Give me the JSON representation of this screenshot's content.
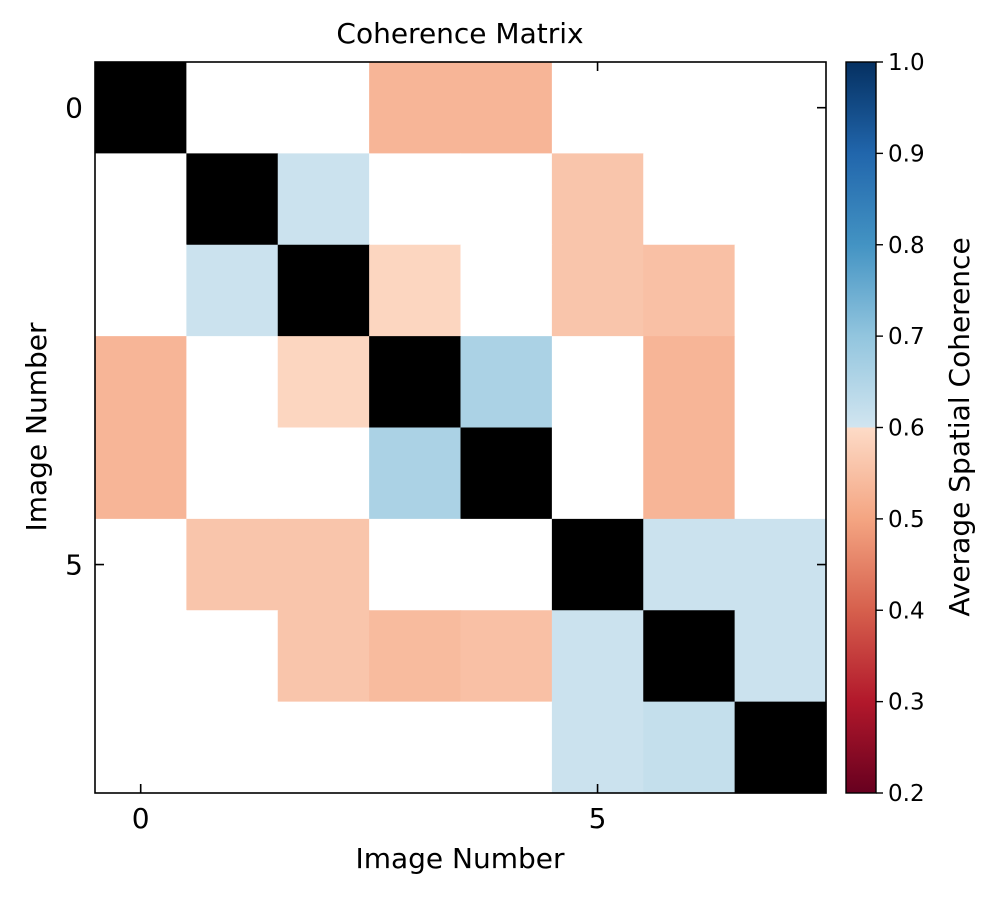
{
  "chart_data": {
    "type": "heatmap",
    "title": "Coherence Matrix",
    "xlabel": "Image Number",
    "ylabel": "Image Number",
    "x_ticks": [
      0,
      5
    ],
    "y_ticks": [
      0,
      5
    ],
    "x_tick_labels": [
      "0",
      "5"
    ],
    "y_tick_labels": [
      "0",
      "5"
    ],
    "size": 8,
    "diagonal_color": "#000000",
    "missing_color": "#ffffff",
    "matrix": [
      [
        null,
        null,
        null,
        0.53,
        0.53,
        null,
        null,
        null
      ],
      [
        null,
        null,
        0.61,
        null,
        null,
        0.56,
        null,
        null
      ],
      [
        null,
        0.61,
        null,
        0.59,
        null,
        0.56,
        0.55,
        null
      ],
      [
        0.53,
        null,
        0.59,
        null,
        0.66,
        null,
        0.53,
        null
      ],
      [
        0.53,
        null,
        null,
        0.66,
        null,
        null,
        0.53,
        null
      ],
      [
        null,
        0.56,
        0.56,
        null,
        null,
        null,
        0.61,
        0.61
      ],
      [
        null,
        null,
        0.56,
        0.54,
        0.55,
        0.61,
        null,
        0.61
      ],
      [
        null,
        null,
        null,
        null,
        null,
        0.61,
        0.62,
        null
      ]
    ],
    "colorbar": {
      "label": "Average Spatial Coherence",
      "min": 0.2,
      "max": 1.0,
      "ticks": [
        0.2,
        0.3,
        0.4,
        0.5,
        0.6,
        0.7,
        0.8,
        0.9,
        1.0
      ],
      "tick_labels": [
        "0.2",
        "0.3",
        "0.4",
        "0.5",
        "0.6",
        "0.7",
        "0.8",
        "0.9",
        "1.0"
      ],
      "colormap": "RdBu",
      "stops": [
        [
          0.0,
          "#67001f"
        ],
        [
          0.125,
          "#b2182b"
        ],
        [
          0.25,
          "#d6604d"
        ],
        [
          0.375,
          "#f4a582"
        ],
        [
          0.4999,
          "#fddbc7"
        ],
        [
          0.5,
          "#d1e5f0"
        ],
        [
          0.625,
          "#92c5de"
        ],
        [
          0.75,
          "#4393c3"
        ],
        [
          0.875,
          "#2166ac"
        ],
        [
          1.0,
          "#053061"
        ]
      ]
    }
  }
}
